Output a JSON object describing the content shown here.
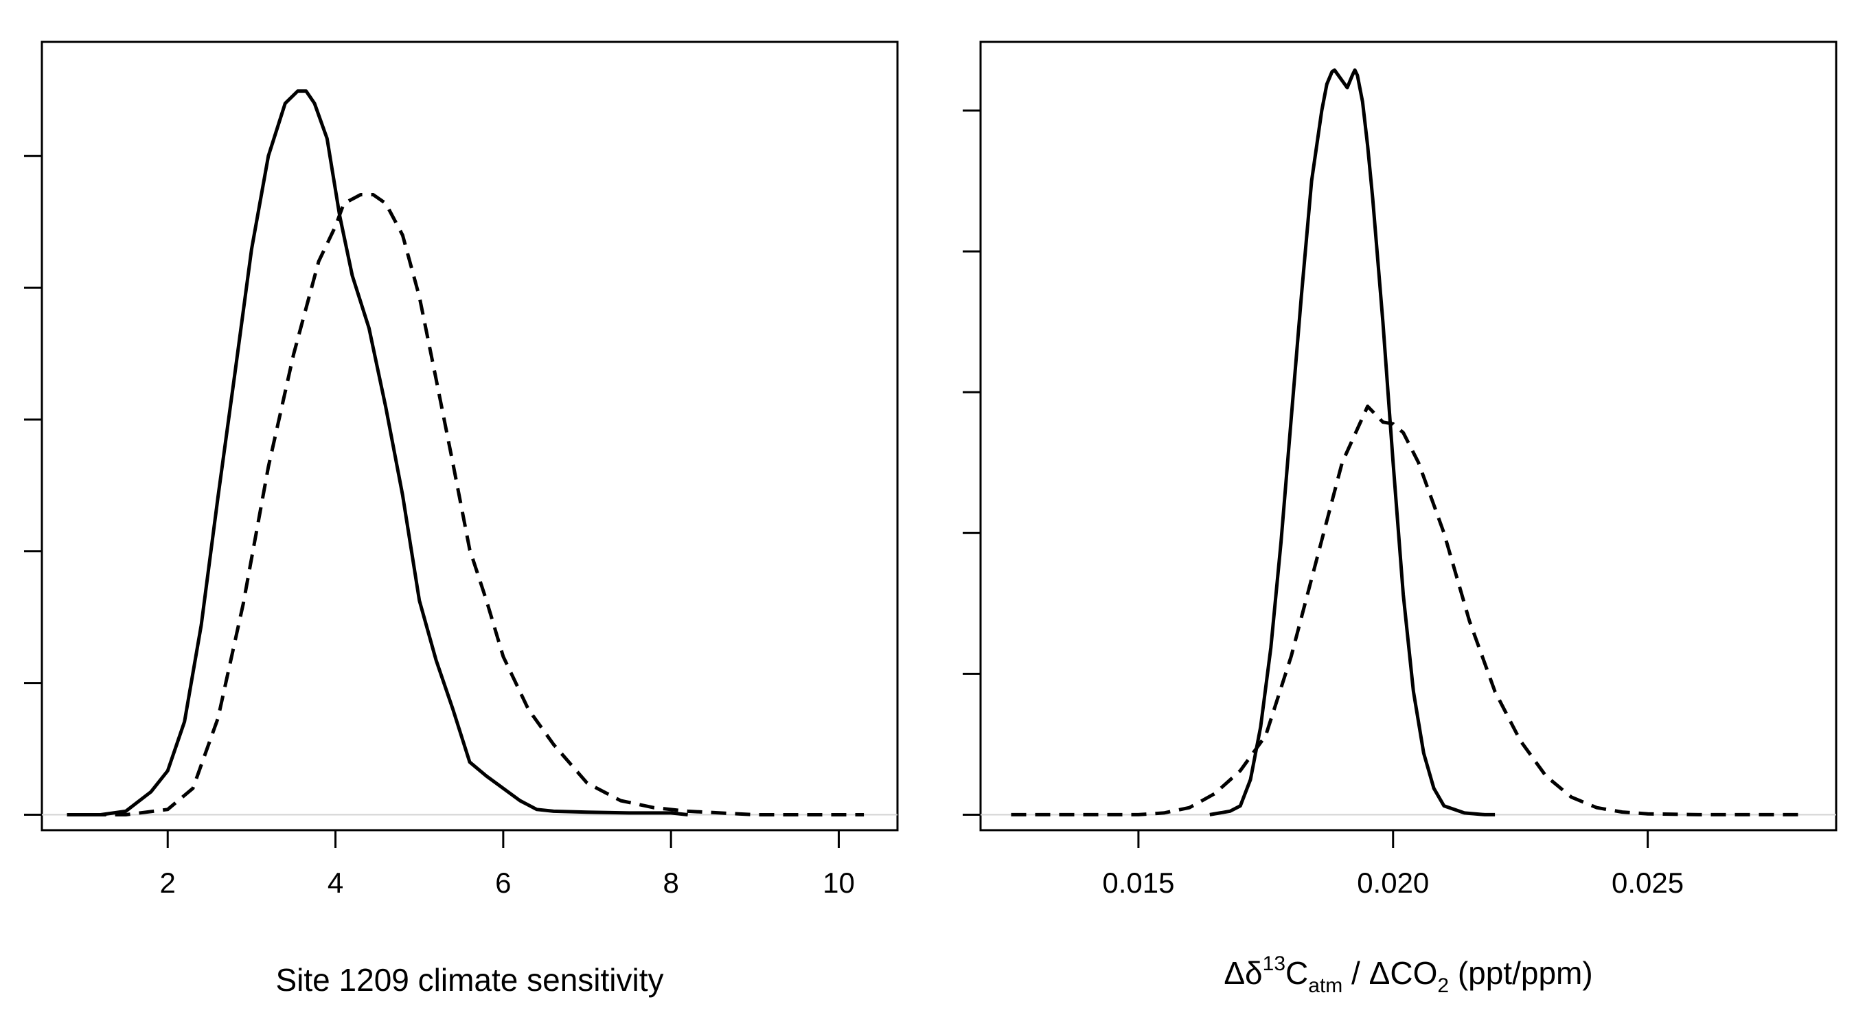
{
  "chart_data": [
    {
      "type": "line",
      "xlabel": "Site 1209 climate sensitivity",
      "ylabel": "",
      "xlim": [
        0.5,
        10.7
      ],
      "ylim": [
        -0.0088,
        0.44
      ],
      "xticks": [
        2,
        4,
        6,
        8,
        10
      ],
      "xtick_labels": [
        "2",
        "4",
        "6",
        "8",
        "10"
      ],
      "yticks": [
        0,
        0.075,
        0.15,
        0.225,
        0.3,
        0.375
      ],
      "ytick_labels_shown": false,
      "grid": false,
      "legend": "none",
      "series": [
        {
          "style": "solid",
          "x": [
            0.8,
            1.2,
            1.5,
            1.8,
            2.0,
            2.2,
            2.4,
            2.6,
            2.8,
            3.0,
            3.2,
            3.4,
            3.55,
            3.65,
            3.75,
            3.9,
            4.05,
            4.2,
            4.4,
            4.6,
            4.8,
            5.0,
            5.2,
            5.4,
            5.6,
            5.8,
            6.0,
            6.2,
            6.4,
            6.6,
            7.0,
            7.5,
            8.0,
            8.2
          ],
          "y": [
            0.0,
            0.0,
            0.002,
            0.013,
            0.025,
            0.053,
            0.108,
            0.181,
            0.251,
            0.322,
            0.375,
            0.405,
            0.412,
            0.412,
            0.405,
            0.385,
            0.341,
            0.307,
            0.277,
            0.232,
            0.182,
            0.122,
            0.088,
            0.06,
            0.03,
            0.022,
            0.015,
            0.008,
            0.003,
            0.002,
            0.0015,
            0.001,
            0.001,
            0.0
          ]
        },
        {
          "style": "dashed",
          "x": [
            0.8,
            1.2,
            1.5,
            2.0,
            2.3,
            2.6,
            2.9,
            3.2,
            3.5,
            3.8,
            4.0,
            4.1,
            4.3,
            4.45,
            4.6,
            4.8,
            5.0,
            5.2,
            5.4,
            5.6,
            5.8,
            6.0,
            6.3,
            6.6,
            7.0,
            7.4,
            7.8,
            8.2,
            9.0,
            10.0,
            10.3
          ],
          "y": [
            0.0,
            0.0,
            0.0,
            0.003,
            0.015,
            0.055,
            0.12,
            0.198,
            0.262,
            0.315,
            0.335,
            0.348,
            0.353,
            0.353,
            0.348,
            0.33,
            0.295,
            0.248,
            0.2,
            0.151,
            0.122,
            0.09,
            0.06,
            0.04,
            0.018,
            0.008,
            0.004,
            0.002,
            0.0,
            0.0,
            0.0
          ]
        }
      ]
    },
    {
      "type": "line",
      "xlabel": "Δδ¹³C_atm / ΔCO₂ (ppt/ppm)",
      "ylabel": "",
      "xlim": [
        0.0119,
        0.0287
      ],
      "ylim": [
        -0.0088,
        0.439
      ],
      "xticks": [
        0.015,
        0.02,
        0.025
      ],
      "xtick_labels": [
        "0.015",
        "0.020",
        "0.025"
      ],
      "yticks": [
        0,
        0.08,
        0.16,
        0.24,
        0.32,
        0.4
      ],
      "ytick_labels_shown": false,
      "grid": false,
      "legend": "none",
      "series": [
        {
          "style": "solid",
          "x": [
            0.0164,
            0.0168,
            0.017,
            0.0172,
            0.0174,
            0.0176,
            0.0178,
            0.018,
            0.0182,
            0.0184,
            0.0186,
            0.0187,
            0.0188,
            0.01885,
            0.019,
            0.0191,
            0.0192,
            0.01925,
            0.0193,
            0.0194,
            0.0195,
            0.0196,
            0.0198,
            0.02,
            0.0202,
            0.0204,
            0.0206,
            0.0208,
            0.021,
            0.0212,
            0.0214,
            0.0218,
            0.022
          ],
          "y": [
            0.0,
            0.002,
            0.005,
            0.02,
            0.05,
            0.095,
            0.155,
            0.225,
            0.295,
            0.36,
            0.4,
            0.415,
            0.422,
            0.423,
            0.417,
            0.413,
            0.42,
            0.423,
            0.42,
            0.405,
            0.38,
            0.35,
            0.28,
            0.2,
            0.125,
            0.07,
            0.035,
            0.015,
            0.005,
            0.003,
            0.001,
            0.0,
            0.0
          ]
        },
        {
          "style": "dashed",
          "x": [
            0.0125,
            0.014,
            0.015,
            0.0155,
            0.016,
            0.0165,
            0.017,
            0.0175,
            0.018,
            0.0185,
            0.019,
            0.0195,
            0.0198,
            0.02,
            0.0202,
            0.0205,
            0.021,
            0.0215,
            0.022,
            0.0225,
            0.023,
            0.0235,
            0.024,
            0.0245,
            0.025,
            0.026,
            0.027,
            0.028
          ],
          "y": [
            0.0,
            0.0,
            0.0,
            0.001,
            0.004,
            0.012,
            0.025,
            0.045,
            0.09,
            0.145,
            0.2,
            0.232,
            0.223,
            0.222,
            0.217,
            0.2,
            0.16,
            0.11,
            0.07,
            0.042,
            0.022,
            0.01,
            0.004,
            0.0015,
            0.0005,
            0.0,
            0.0,
            0.0
          ]
        }
      ]
    }
  ]
}
